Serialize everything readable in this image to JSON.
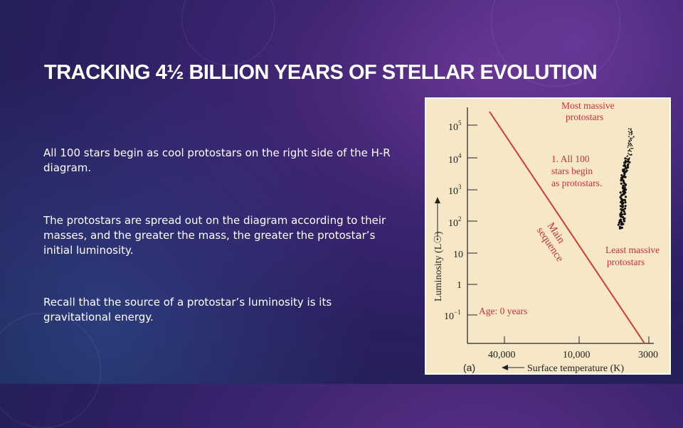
{
  "slide": {
    "title": "TRACKING 4½ BILLION YEARS OF STELLAR EVOLUTION",
    "paragraphs": [
      "All 100 stars begin as cool protostars on the right side of the H-R diagram.",
      "The protostars are spread out on the diagram according to their masses, and the greater the mass, the greater the protostar’s initial luminosity.",
      "Recall that the source of a protostar’s luminosity is its gravitational energy."
    ]
  },
  "diagram": {
    "panel_label": "(a)",
    "y_axis_label": "Luminosity (L☉)",
    "x_axis_label": "Surface temperature (K)",
    "y_ticks": [
      {
        "base": "10",
        "exp": "5"
      },
      {
        "base": "10",
        "exp": "4"
      },
      {
        "base": "10",
        "exp": "3"
      },
      {
        "base": "10",
        "exp": "2"
      },
      {
        "base": "10",
        "exp": ""
      },
      {
        "base": "1",
        "exp": ""
      },
      {
        "base": "10",
        "exp": "−1"
      }
    ],
    "x_ticks": [
      "40,000",
      "10,000",
      "3000"
    ],
    "main_sequence_label": [
      "Main",
      "sequence"
    ],
    "most_massive_label": [
      "Most massive",
      "protostars"
    ],
    "least_massive_label": [
      "Least massive",
      "protostars"
    ],
    "all_stars_label": [
      "1. All 100",
      "stars begin",
      "as protostars."
    ],
    "age_label": "Age: 0 years",
    "colors": {
      "annotation": "#c8323c",
      "main_sequence": "#d23a32",
      "axis": "#222222",
      "background": "#f6e7c6"
    }
  }
}
